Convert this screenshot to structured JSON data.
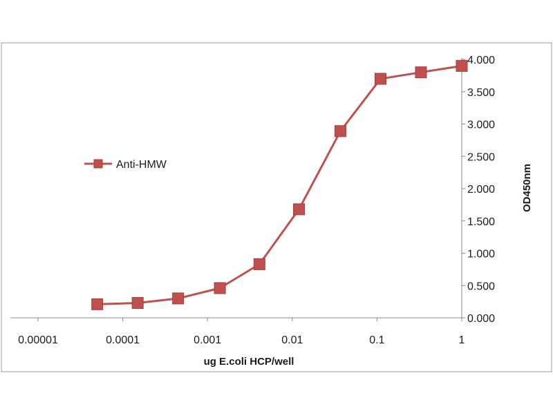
{
  "chart_data": {
    "type": "line",
    "x_scale": "log",
    "xlabel": "ug E.coli HCP/well",
    "ylabel": "OD450nm",
    "xlim": [
      1e-05,
      1
    ],
    "ylim": [
      0,
      4
    ],
    "x_ticks": [
      1e-05,
      0.0001,
      0.001,
      0.01,
      0.1,
      1
    ],
    "x_tick_labels": [
      "0.00001",
      "0.0001",
      "0.001",
      "0.01",
      "0.1",
      "1"
    ],
    "y_ticks": [
      0,
      0.5,
      1,
      1.5,
      2,
      2.5,
      3,
      3.5,
      4
    ],
    "y_tick_labels": [
      "0.000",
      "0.500",
      "1.000",
      "1.500",
      "2.000",
      "2.500",
      "3.000",
      "3.500",
      "4.000"
    ],
    "y_axis_side": "right",
    "grid": false,
    "legend_position": "left",
    "series": [
      {
        "name": "Anti-HMW",
        "color": "#c0504d",
        "marker": "square",
        "x": [
          5e-05,
          0.00015,
          0.00045,
          0.0014,
          0.0041,
          0.012,
          0.037,
          0.11,
          0.33,
          1.0
        ],
        "y": [
          0.21,
          0.23,
          0.3,
          0.46,
          0.83,
          1.68,
          2.89,
          3.7,
          3.8,
          3.9
        ]
      }
    ]
  }
}
